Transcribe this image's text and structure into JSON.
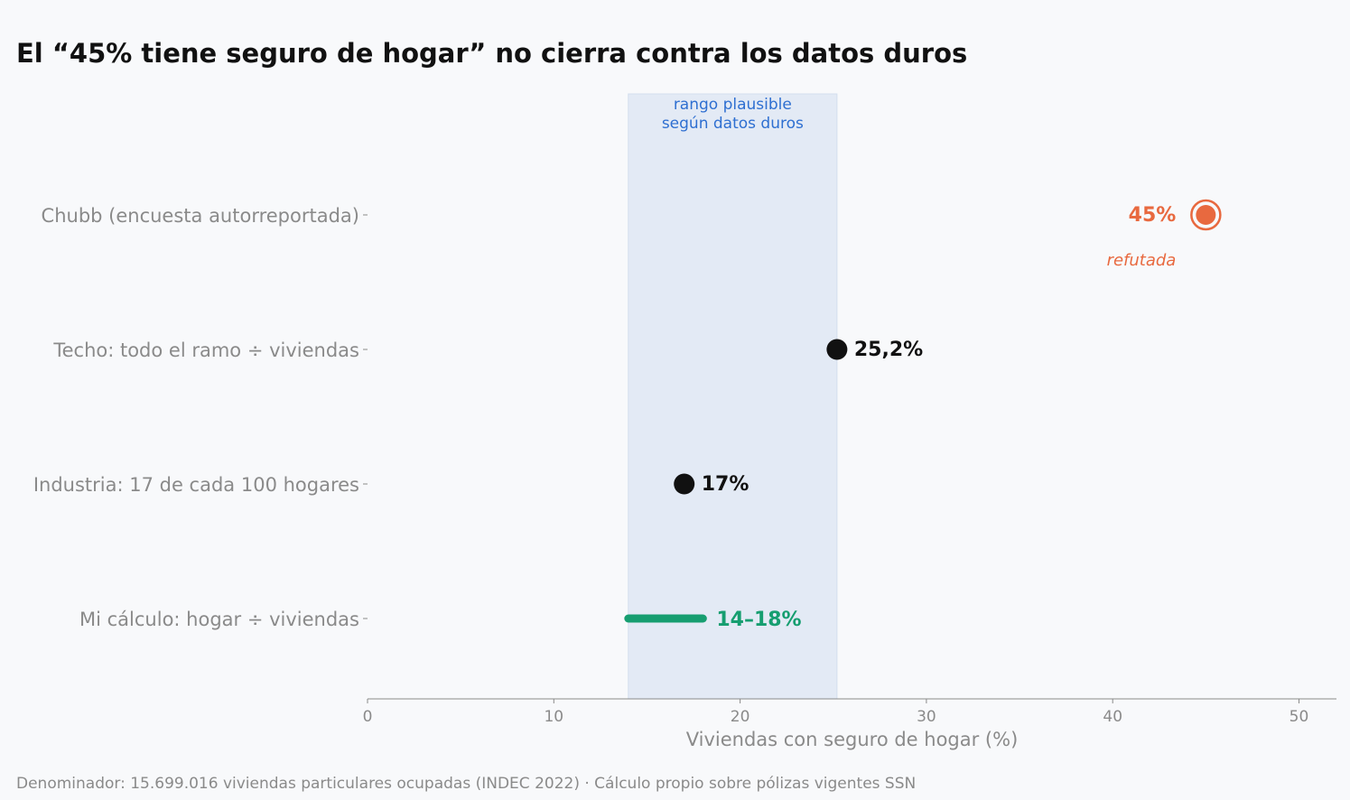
{
  "title": "El “45% tiene seguro de hogar” no cierra contra los datos duros",
  "footnote": "Denominador: 15.699.016 viviendas particulares ocupadas (INDEC 2022) · Cálculo propio sobre pólizas vigentes SSN",
  "chart_data": {
    "type": "dot-range",
    "xlabel": "Viviendas con seguro de hogar (%)",
    "xlim": [
      0,
      52
    ],
    "xticks": [
      0,
      10,
      20,
      30,
      40,
      50
    ],
    "grid": false,
    "band": {
      "from": 14,
      "to": 25.2,
      "label_lines": [
        "rango plausible",
        "según datos duros"
      ],
      "color": "#e3eaf5"
    },
    "rows": [
      {
        "label": "Chubb (encuesta autorreportada)",
        "kind": "point",
        "value": 45,
        "value_label": "45%",
        "note": "refutada",
        "color": "#e8693f"
      },
      {
        "label": "Techo: todo el ramo ÷ viviendas",
        "kind": "point",
        "value": 25.2,
        "value_label": "25,2%",
        "color": "#111111"
      },
      {
        "label": "Industria: 17 de cada 100 hogares",
        "kind": "point",
        "value": 17,
        "value_label": "17%",
        "color": "#111111"
      },
      {
        "label": "Mi cálculo: hogar ÷ viviendas",
        "kind": "range",
        "from": 14,
        "to": 18,
        "value_label": "14–18%",
        "color": "#169e70"
      }
    ]
  }
}
